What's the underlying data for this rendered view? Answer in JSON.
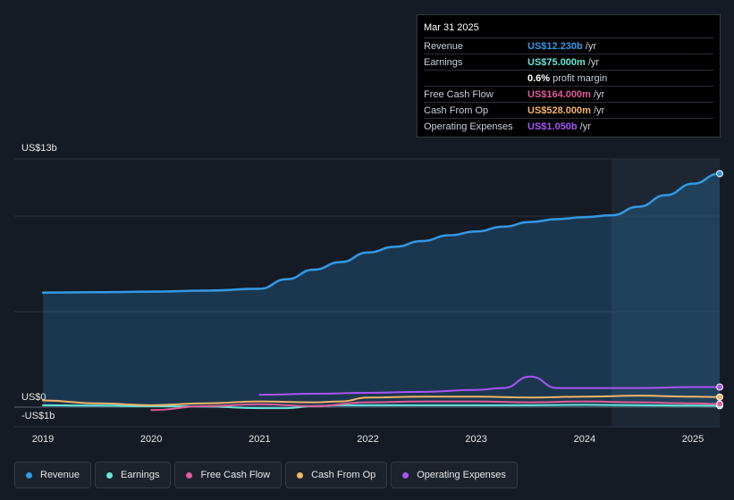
{
  "tooltip": {
    "date": "Mar 31 2025",
    "rows": [
      {
        "label": "Revenue",
        "value": "US$12.230b",
        "unit": "/yr",
        "color": "#3399e6"
      },
      {
        "label": "Earnings",
        "value": "US$75.000m",
        "unit": "/yr",
        "color": "#66e6d9"
      },
      {
        "label": "",
        "value": "0.6%",
        "unit": "profit margin",
        "color": "#ffffff"
      },
      {
        "label": "Free Cash Flow",
        "value": "US$164.000m",
        "unit": "/yr",
        "color": "#e05c9b"
      },
      {
        "label": "Cash From Op",
        "value": "US$528.000m",
        "unit": "/yr",
        "color": "#f2b566"
      },
      {
        "label": "Operating Expenses",
        "value": "US$1.050b",
        "unit": "/yr",
        "color": "#a855f7"
      }
    ]
  },
  "legend": [
    {
      "label": "Revenue",
      "color": "#3399e6"
    },
    {
      "label": "Earnings",
      "color": "#66e6d9"
    },
    {
      "label": "Free Cash Flow",
      "color": "#e05c9b"
    },
    {
      "label": "Cash From Op",
      "color": "#f2b566"
    },
    {
      "label": "Operating Expenses",
      "color": "#a855f7"
    }
  ],
  "chart_data": {
    "type": "area",
    "y_axis_labels": [
      "US$13b",
      "US$0",
      "-US$1b"
    ],
    "ylim": [
      -1,
      13
    ],
    "x_ticks": [
      "2019",
      "2020",
      "2021",
      "2022",
      "2023",
      "2024",
      "2025"
    ],
    "xlim": [
      2018.75,
      2025.25
    ],
    "highlight_start": 2024.25,
    "series": [
      {
        "name": "Revenue",
        "color": "#3399e6",
        "x": [
          2019.0,
          2019.5,
          2020.0,
          2020.5,
          2021.0,
          2021.25,
          2021.5,
          2021.75,
          2022.0,
          2022.25,
          2022.5,
          2022.75,
          2023.0,
          2023.25,
          2023.5,
          2023.75,
          2024.0,
          2024.25,
          2024.5,
          2024.75,
          2025.0,
          2025.25
        ],
        "y": [
          6.0,
          6.02,
          6.05,
          6.1,
          6.2,
          6.7,
          7.2,
          7.6,
          8.1,
          8.4,
          8.7,
          9.0,
          9.2,
          9.45,
          9.7,
          9.85,
          9.95,
          10.05,
          10.5,
          11.1,
          11.7,
          12.23
        ]
      },
      {
        "name": "Earnings",
        "color": "#66e6d9",
        "x": [
          2019.0,
          2019.5,
          2020.0,
          2020.5,
          2021.0,
          2021.25,
          2021.5,
          2021.75,
          2022.0,
          2022.5,
          2023.0,
          2023.5,
          2024.0,
          2024.5,
          2025.0,
          2025.25
        ],
        "y": [
          0.1,
          0.08,
          0.05,
          0.03,
          -0.05,
          -0.05,
          0.05,
          0.1,
          0.1,
          0.1,
          0.1,
          0.1,
          0.12,
          0.1,
          0.08,
          0.075
        ]
      },
      {
        "name": "Free Cash Flow",
        "color": "#e05c9b",
        "x": [
          2020.0,
          2020.5,
          2021.0,
          2021.5,
          2022.0,
          2022.5,
          2023.0,
          2023.5,
          2024.0,
          2024.5,
          2025.0,
          2025.25
        ],
        "y": [
          -0.15,
          0.05,
          0.15,
          0.05,
          0.25,
          0.3,
          0.3,
          0.25,
          0.3,
          0.25,
          0.2,
          0.164
        ]
      },
      {
        "name": "Cash From Op",
        "color": "#f2b566",
        "x": [
          2019.0,
          2019.5,
          2020.0,
          2020.5,
          2021.0,
          2021.5,
          2021.75,
          2022.0,
          2022.5,
          2023.0,
          2023.5,
          2024.0,
          2024.5,
          2025.0,
          2025.25
        ],
        "y": [
          0.35,
          0.2,
          0.1,
          0.2,
          0.3,
          0.25,
          0.3,
          0.5,
          0.55,
          0.55,
          0.5,
          0.55,
          0.6,
          0.55,
          0.528
        ]
      },
      {
        "name": "Operating Expenses",
        "color": "#a855f7",
        "x": [
          2021.0,
          2021.5,
          2022.0,
          2022.5,
          2023.0,
          2023.25,
          2023.5,
          2023.75,
          2024.0,
          2024.5,
          2025.0,
          2025.25
        ],
        "y": [
          0.65,
          0.7,
          0.75,
          0.8,
          0.9,
          1.0,
          1.6,
          1.0,
          1.0,
          1.0,
          1.05,
          1.05
        ]
      }
    ]
  }
}
